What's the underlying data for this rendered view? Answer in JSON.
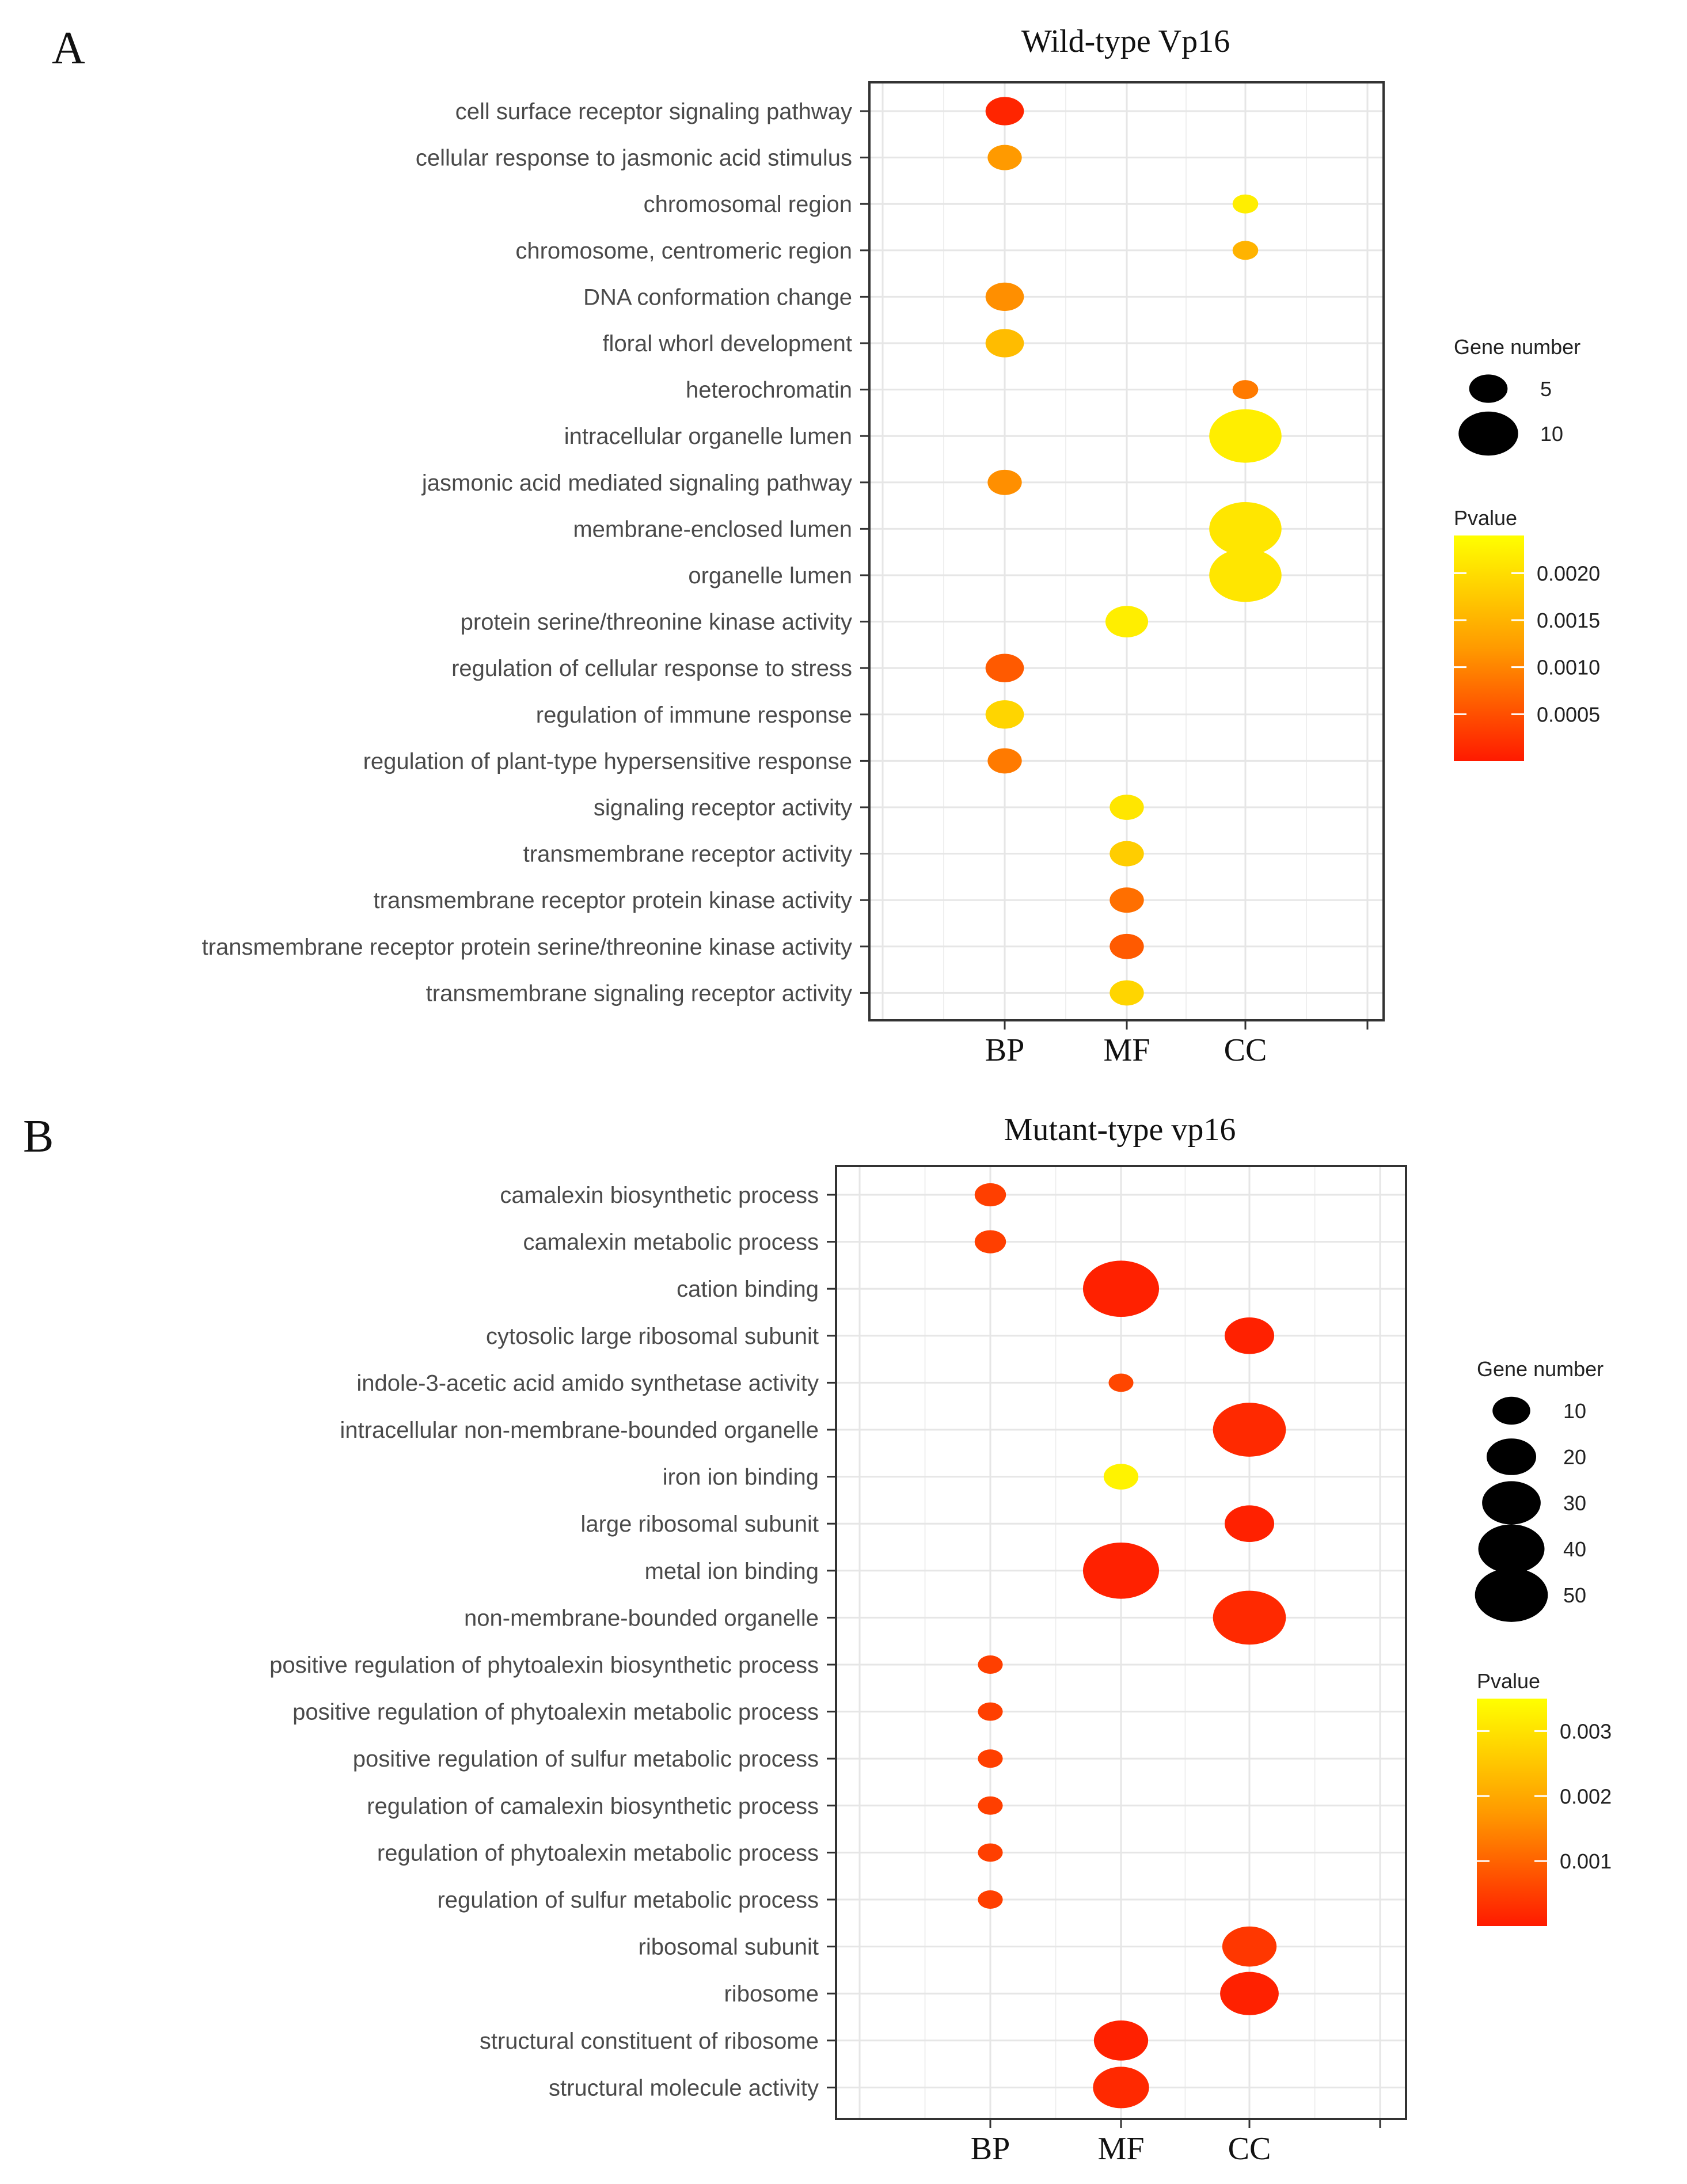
{
  "colors": {
    "low": "#ff1a00",
    "mid": "#ff9a00",
    "high": "#ffff00",
    "grid": "#e6e6e6",
    "axis": "#333333"
  },
  "chart_data": [
    {
      "panel_label": "A",
      "type": "scatter",
      "title": "Wild-type Vp16",
      "categories": [
        "BP",
        "MF",
        "CC"
      ],
      "size_legend": {
        "title": "Gene number",
        "values": [
          5,
          10
        ]
      },
      "color_legend": {
        "title": "Pvalue",
        "range": [
          0.0,
          0.0024
        ],
        "ticks": [
          0.0005,
          0.001,
          0.0015,
          0.002
        ],
        "tick_labels": [
          "0.0005",
          "0.0010",
          "0.0015",
          "0.0020"
        ]
      },
      "points": [
        {
          "term": "cell surface receptor signaling pathway",
          "category": "BP",
          "genes": 5,
          "pvalue": 0.0001
        },
        {
          "term": "cellular response to jasmonic acid stimulus",
          "category": "BP",
          "genes": 4,
          "pvalue": 0.0012
        },
        {
          "term": "chromosomal region",
          "category": "CC",
          "genes": 2,
          "pvalue": 0.0022
        },
        {
          "term": "chromosome, centromeric region",
          "category": "CC",
          "genes": 2,
          "pvalue": 0.0015
        },
        {
          "term": "DNA conformation change",
          "category": "BP",
          "genes": 5,
          "pvalue": 0.0011
        },
        {
          "term": "floral whorl development",
          "category": "BP",
          "genes": 5,
          "pvalue": 0.0016
        },
        {
          "term": "heterochromatin",
          "category": "CC",
          "genes": 2,
          "pvalue": 0.0009
        },
        {
          "term": "intracellular organelle lumen",
          "category": "CC",
          "genes": 13,
          "pvalue": 0.0022
        },
        {
          "term": "jasmonic acid mediated signaling pathway",
          "category": "BP",
          "genes": 4,
          "pvalue": 0.0011
        },
        {
          "term": "membrane-enclosed lumen",
          "category": "CC",
          "genes": 13,
          "pvalue": 0.0021
        },
        {
          "term": "organelle lumen",
          "category": "CC",
          "genes": 13,
          "pvalue": 0.0021
        },
        {
          "term": "protein serine/threonine kinase activity",
          "category": "MF",
          "genes": 6,
          "pvalue": 0.0022
        },
        {
          "term": "regulation of cellular response to stress",
          "category": "BP",
          "genes": 5,
          "pvalue": 0.0006
        },
        {
          "term": "regulation of immune response",
          "category": "BP",
          "genes": 5,
          "pvalue": 0.0019
        },
        {
          "term": "regulation of plant-type hypersensitive response",
          "category": "BP",
          "genes": 4,
          "pvalue": 0.0009
        },
        {
          "term": "signaling receptor activity",
          "category": "MF",
          "genes": 4,
          "pvalue": 0.0021
        },
        {
          "term": "transmembrane receptor activity",
          "category": "MF",
          "genes": 4,
          "pvalue": 0.0018
        },
        {
          "term": "transmembrane receptor protein kinase activity",
          "category": "MF",
          "genes": 4,
          "pvalue": 0.0008
        },
        {
          "term": "transmembrane receptor protein serine/threonine kinase activity",
          "category": "MF",
          "genes": 4,
          "pvalue": 0.0006
        },
        {
          "term": "transmembrane signaling receptor activity",
          "category": "MF",
          "genes": 4,
          "pvalue": 0.0019
        }
      ]
    },
    {
      "panel_label": "B",
      "type": "scatter",
      "title": "Mutant-type vp16",
      "categories": [
        "BP",
        "MF",
        "CC"
      ],
      "size_legend": {
        "title": "Gene number",
        "values": [
          10,
          20,
          30,
          40,
          50
        ]
      },
      "color_legend": {
        "title": "Pvalue",
        "range": [
          0.0,
          0.0035
        ],
        "ticks": [
          0.001,
          0.002,
          0.003
        ],
        "tick_labels": [
          "0.001",
          "0.002",
          "0.003"
        ]
      },
      "points": [
        {
          "term": "camalexin biosynthetic process",
          "category": "BP",
          "genes": 6,
          "pvalue": 0.0005
        },
        {
          "term": "camalexin metabolic process",
          "category": "BP",
          "genes": 6,
          "pvalue": 0.0005
        },
        {
          "term": "cation binding",
          "category": "MF",
          "genes": 55,
          "pvalue": 0.0001
        },
        {
          "term": "cytosolic large ribosomal subunit",
          "category": "CC",
          "genes": 20,
          "pvalue": 0.0001
        },
        {
          "term": "indole-3-acetic acid amido synthetase activity",
          "category": "MF",
          "genes": 3,
          "pvalue": 0.0006
        },
        {
          "term": "intracellular non-membrane-bounded organelle",
          "category": "CC",
          "genes": 50,
          "pvalue": 0.0002
        },
        {
          "term": "iron ion binding",
          "category": "MF",
          "genes": 8,
          "pvalue": 0.0033
        },
        {
          "term": "large ribosomal subunit",
          "category": "CC",
          "genes": 20,
          "pvalue": 0.0001
        },
        {
          "term": "metal ion binding",
          "category": "MF",
          "genes": 55,
          "pvalue": 0.0001
        },
        {
          "term": "non-membrane-bounded organelle",
          "category": "CC",
          "genes": 50,
          "pvalue": 0.0002
        },
        {
          "term": "positive regulation of phytoalexin biosynthetic process",
          "category": "BP",
          "genes": 3,
          "pvalue": 0.0005
        },
        {
          "term": "positive regulation of phytoalexin metabolic process",
          "category": "BP",
          "genes": 3,
          "pvalue": 0.0005
        },
        {
          "term": "positive regulation of sulfur metabolic process",
          "category": "BP",
          "genes": 3,
          "pvalue": 0.0005
        },
        {
          "term": "regulation of camalexin biosynthetic process",
          "category": "BP",
          "genes": 3,
          "pvalue": 0.0005
        },
        {
          "term": "regulation of phytoalexin metabolic process",
          "category": "BP",
          "genes": 3,
          "pvalue": 0.0005
        },
        {
          "term": "regulation of sulfur metabolic process",
          "category": "BP",
          "genes": 3,
          "pvalue": 0.0005
        },
        {
          "term": "ribosomal subunit",
          "category": "CC",
          "genes": 25,
          "pvalue": 0.0004
        },
        {
          "term": "ribosome",
          "category": "CC",
          "genes": 30,
          "pvalue": 0.0001
        },
        {
          "term": "structural constituent of ribosome",
          "category": "MF",
          "genes": 25,
          "pvalue": 0.0001
        },
        {
          "term": "structural molecule activity",
          "category": "MF",
          "genes": 27,
          "pvalue": 0.0002
        }
      ]
    }
  ]
}
